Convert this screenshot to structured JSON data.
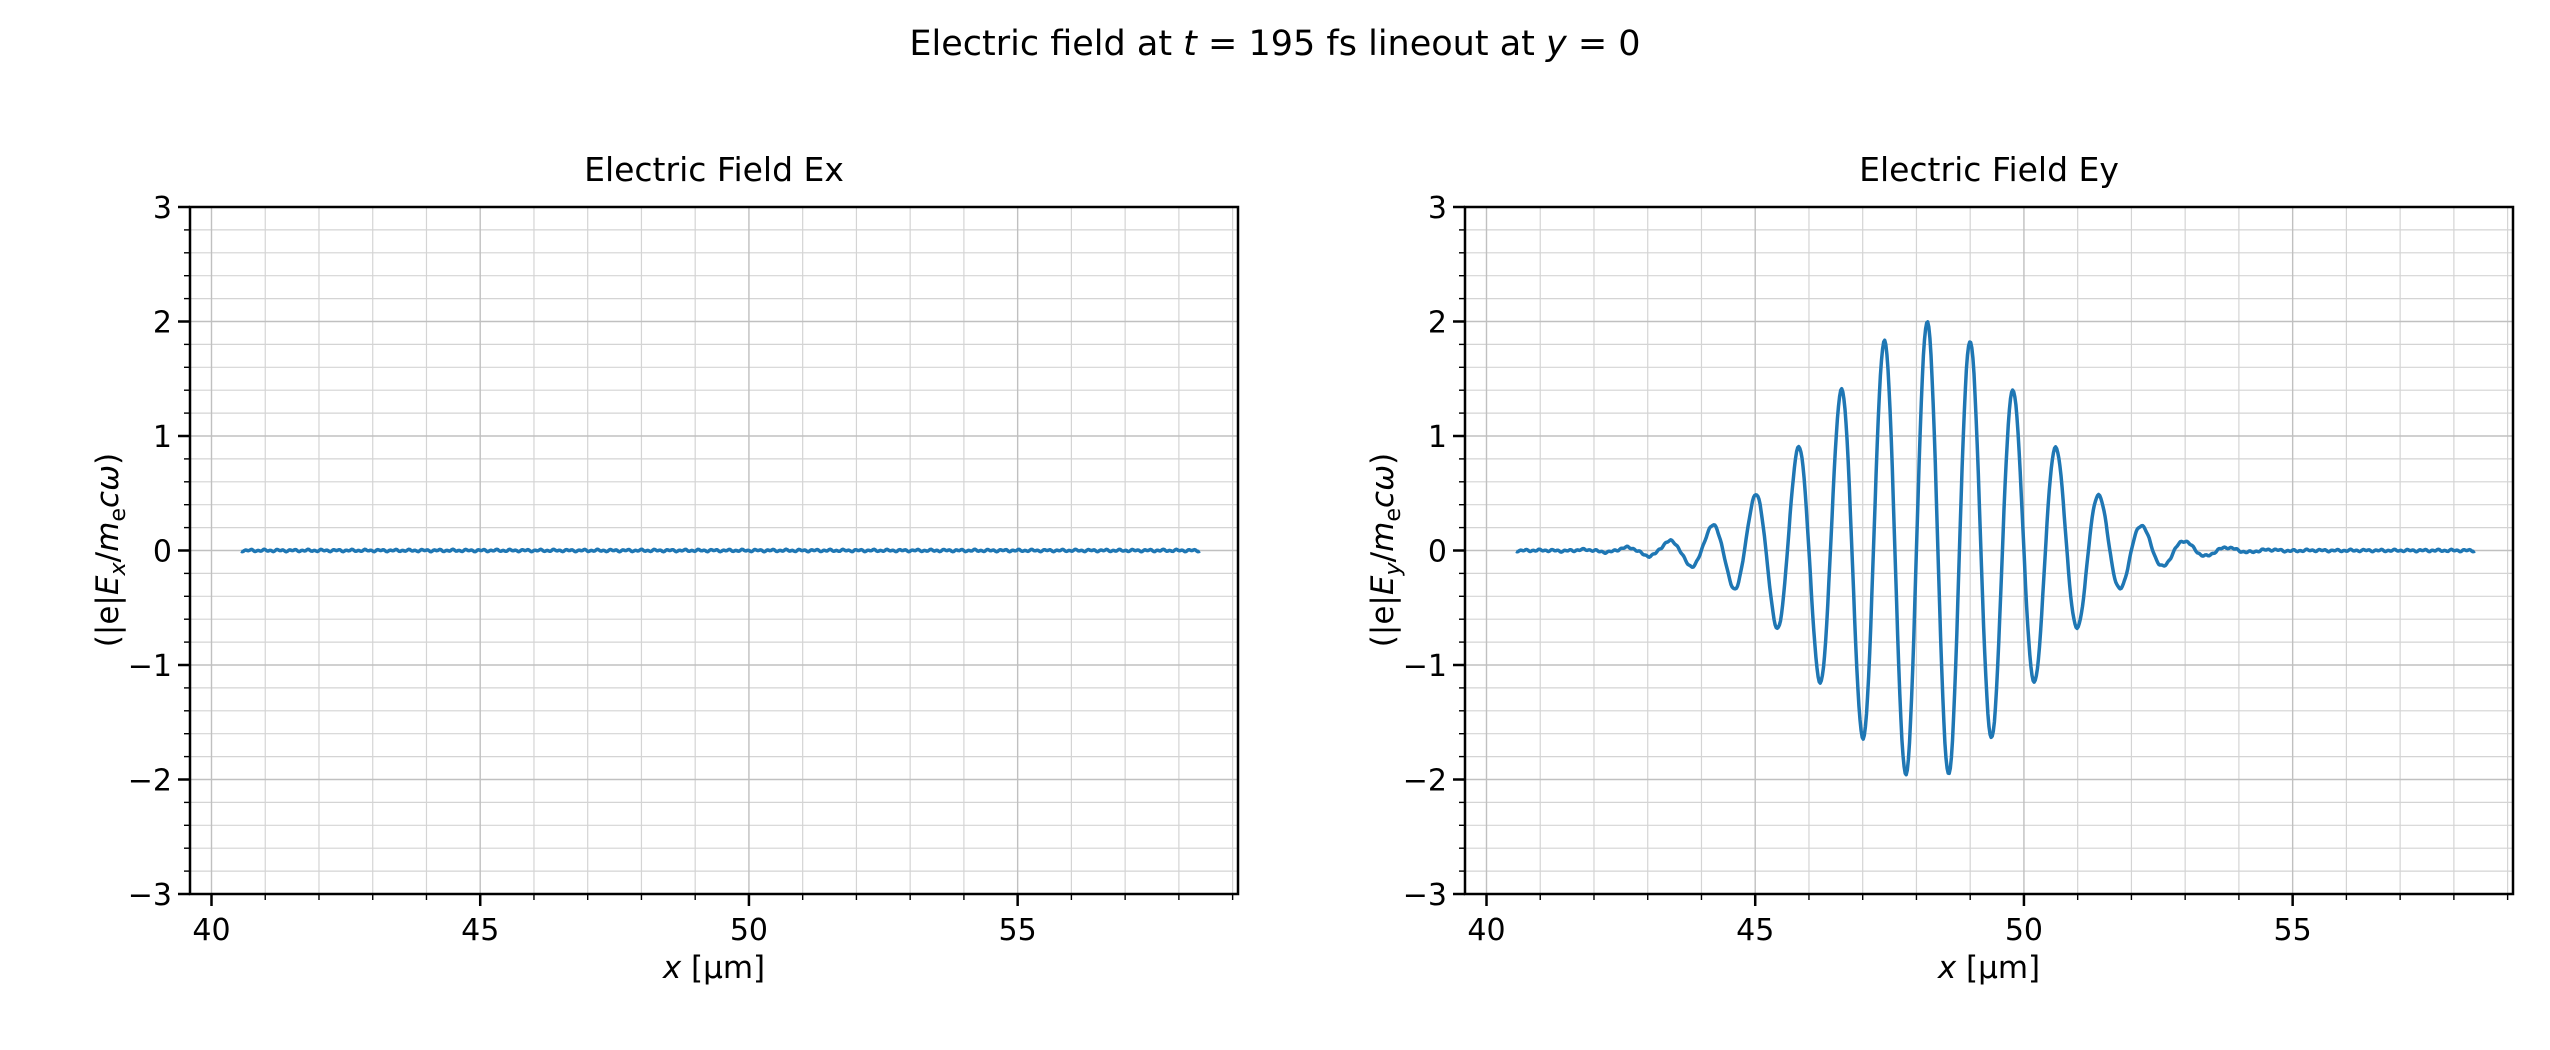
{
  "suptitle": {
    "p1": "Electric field at ",
    "t": "t",
    "p2": " = 195 fs lineout at ",
    "y": "y",
    "p3": " = 0"
  },
  "figure_title": "Electric field at t = 195 fs lineout at y = 0",
  "chart_data": [
    {
      "type": "line",
      "title": "Electric Field Ex",
      "xlabel": "x [μm]",
      "ylabel": "(|e|E_x/m_e cω)",
      "xlabel_parts": {
        "var": "x",
        "unit": " [μm]"
      },
      "ylabel_parts": {
        "open": "(|e|",
        "E": "E",
        "sub": "x",
        "slash": "/",
        "m": "m",
        "msub": "e",
        "cw": "cω",
        "close": ")"
      },
      "xlim": [
        39.6,
        59.1
      ],
      "ylim": [
        -3,
        3
      ],
      "xticks": [
        40,
        45,
        50,
        55
      ],
      "yticks": [
        -3,
        -2,
        -1,
        0,
        1,
        2,
        3
      ],
      "x_minor_step": 1,
      "y_minor_step": 0.2,
      "grid": true,
      "line_color": "#1f77b4",
      "series": [
        {
          "name": "Ex",
          "model": "constant",
          "value": 0,
          "x_start": 40.55,
          "x_end": 58.4
        }
      ]
    },
    {
      "type": "line",
      "title": "Electric Field Ey",
      "xlabel": "x [μm]",
      "ylabel": "(|e|E_y/m_e cω)",
      "xlabel_parts": {
        "var": "x",
        "unit": " [μm]"
      },
      "ylabel_parts": {
        "open": "(|e|",
        "E": "E",
        "sub": "y",
        "slash": "/",
        "m": "m",
        "msub": "e",
        "cw": "cω",
        "close": ")"
      },
      "xlim": [
        39.6,
        59.1
      ],
      "ylim": [
        -3,
        3
      ],
      "xticks": [
        40,
        45,
        50,
        55
      ],
      "yticks": [
        -3,
        -2,
        -1,
        0,
        1,
        2,
        3
      ],
      "x_minor_step": 1,
      "y_minor_step": 0.2,
      "grid": true,
      "line_color": "#1f77b4",
      "series": [
        {
          "name": "Ey",
          "model": "gauss_wave",
          "center": 48.2,
          "sigma": 1.9,
          "amplitude": 2.0,
          "wavelength": 0.8,
          "x_start": 40.55,
          "x_end": 58.4
        }
      ]
    }
  ]
}
